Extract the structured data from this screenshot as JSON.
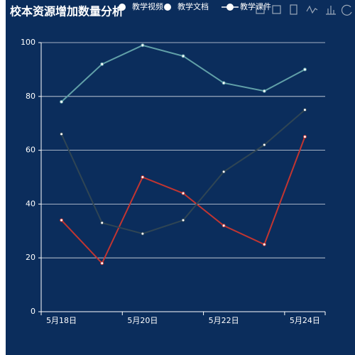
{
  "chart_data": {
    "type": "line",
    "title": "校本资源增加数量分析",
    "categories": [
      "5月18日",
      null,
      "5月20日",
      null,
      "5月22日",
      null,
      "5月24日"
    ],
    "series": [
      {
        "name": "教学视频",
        "color": "#c23531",
        "values": [
          34,
          18,
          50,
          44,
          32,
          25,
          65
        ]
      },
      {
        "name": "教学文档",
        "color": "#2f4554",
        "values": [
          66,
          33,
          29,
          34,
          52,
          62,
          75
        ]
      },
      {
        "name": "教学课件",
        "color": "#61a0a8",
        "values": [
          78,
          92,
          99,
          95,
          85,
          82,
          90
        ]
      }
    ],
    "ylim": [
      0,
      100
    ],
    "yticks": [
      0,
      20,
      40,
      60,
      80,
      100
    ],
    "grid": true
  }
}
